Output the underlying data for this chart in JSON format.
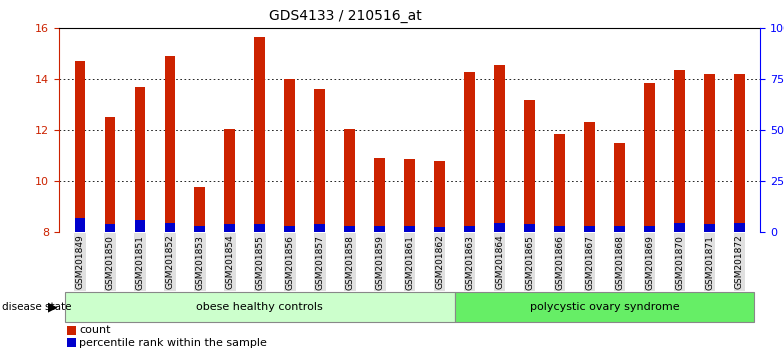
{
  "title": "GDS4133 / 210516_at",
  "samples": [
    "GSM201849",
    "GSM201850",
    "GSM201851",
    "GSM201852",
    "GSM201853",
    "GSM201854",
    "GSM201855",
    "GSM201856",
    "GSM201857",
    "GSM201858",
    "GSM201859",
    "GSM201861",
    "GSM201862",
    "GSM201863",
    "GSM201864",
    "GSM201865",
    "GSM201866",
    "GSM201867",
    "GSM201868",
    "GSM201869",
    "GSM201870",
    "GSM201871",
    "GSM201872"
  ],
  "counts": [
    14.7,
    12.5,
    13.7,
    14.9,
    9.75,
    12.05,
    15.65,
    14.0,
    13.6,
    12.05,
    10.9,
    10.85,
    10.8,
    14.3,
    14.55,
    13.2,
    11.85,
    12.3,
    11.5,
    13.85,
    14.35,
    14.2,
    14.2
  ],
  "percentile_vals": [
    0.55,
    0.3,
    0.45,
    0.35,
    0.25,
    0.3,
    0.3,
    0.25,
    0.3,
    0.25,
    0.25,
    0.25,
    0.2,
    0.25,
    0.35,
    0.3,
    0.25,
    0.25,
    0.25,
    0.25,
    0.35,
    0.3,
    0.35
  ],
  "group1_label": "obese healthy controls",
  "group2_label": "polycystic ovary syndrome",
  "group1_count": 13,
  "group2_count": 10,
  "bar_color": "#cc2200",
  "percentile_color": "#0000cc",
  "bg_color": "#ffffff",
  "ylim_left": [
    8,
    16
  ],
  "ylim_right": [
    0,
    100
  ],
  "yticks_left": [
    8,
    10,
    12,
    14,
    16
  ],
  "yticks_right": [
    0,
    25,
    50,
    75,
    100
  ],
  "group1_color": "#ccffcc",
  "group2_color": "#66ee66",
  "bar_bottom": 8.0,
  "bar_width": 0.35
}
